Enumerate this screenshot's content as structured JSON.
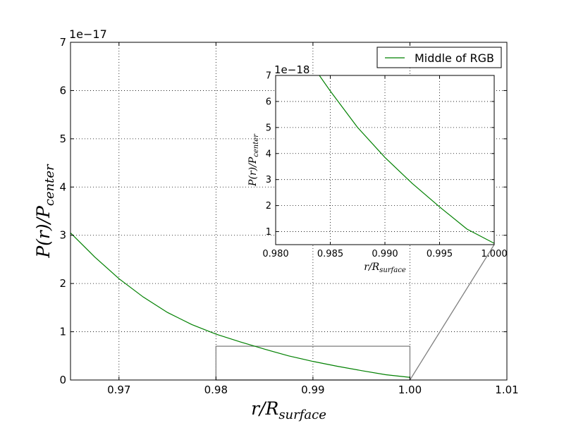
{
  "chart_data": {
    "type": "line",
    "main": {
      "xlim": [
        0.965,
        1.01
      ],
      "ylim": [
        0,
        7e-17
      ],
      "x_ticks": [
        0.97,
        0.98,
        0.99,
        1.0,
        1.01
      ],
      "x_tick_labels": [
        "0.97",
        "0.98",
        "0.99",
        "1.00",
        "1.01"
      ],
      "y_ticks": [
        0,
        1e-17,
        2e-17,
        3e-17,
        4e-17,
        5e-17,
        6e-17,
        7e-17
      ],
      "y_tick_labels": [
        "0",
        "1",
        "2",
        "3",
        "4",
        "5",
        "6",
        "7"
      ],
      "offset_label": "1e−17",
      "xlabel": {
        "main": "r/R",
        "sub": "surface"
      },
      "ylabel": {
        "main": "P(r)/P",
        "sub": "center"
      },
      "grid": true,
      "legend_position": "top-right"
    },
    "inset": {
      "xlim": [
        0.98,
        1.0
      ],
      "ylim": [
        5e-19,
        7e-18
      ],
      "x_ticks": [
        0.98,
        0.985,
        0.99,
        0.995,
        1.0
      ],
      "x_tick_labels": [
        "0.980",
        "0.985",
        "0.990",
        "0.995",
        "1.000"
      ],
      "y_ticks": [
        1e-18,
        2e-18,
        3e-18,
        4e-18,
        5e-18,
        6e-18,
        7e-18
      ],
      "y_tick_labels": [
        "1",
        "2",
        "3",
        "4",
        "5",
        "6",
        "7"
      ],
      "offset_label": "1e−18",
      "xlabel": {
        "main": "r/R",
        "sub": "surface"
      },
      "ylabel": {
        "main": "P(r)/P",
        "sub": "center"
      },
      "grid": true
    },
    "zoom_box": {
      "x": [
        0.98,
        1.0
      ],
      "y": [
        0,
        7e-18
      ]
    },
    "series": [
      {
        "name": "Middle of RGB",
        "color": "#008000",
        "x": [
          0.965,
          0.9675,
          0.97,
          0.9725,
          0.975,
          0.9775,
          0.98,
          0.9825,
          0.984,
          0.985,
          0.9875,
          0.99,
          0.9925,
          0.995,
          0.9975,
          1.0
        ],
        "y": [
          3.05e-17,
          2.55e-17,
          2.1e-17,
          1.72e-17,
          1.4e-17,
          1.15e-17,
          9.5e-18,
          7.9e-18,
          7e-18,
          6.4e-18,
          5e-18,
          3.85e-18,
          2.85e-18,
          1.95e-18,
          1.1e-18,
          5.5e-19
        ]
      }
    ]
  }
}
